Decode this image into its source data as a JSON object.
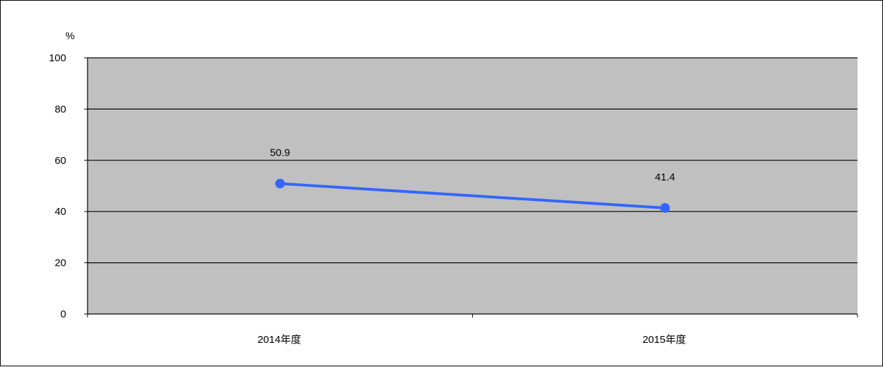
{
  "chart_data": {
    "type": "line",
    "y_unit": "%",
    "categories": [
      "2014年度",
      "2015年度"
    ],
    "series": [
      {
        "values": [
          50.9,
          41.4
        ],
        "color": "#3366ff"
      }
    ],
    "data_labels": [
      "50.9",
      "41.4"
    ],
    "ylim": [
      0,
      100
    ],
    "y_ticks": [
      0,
      20,
      40,
      60,
      80,
      100
    ],
    "y_tick_labels": [
      "0",
      "20",
      "40",
      "60",
      "80",
      "100"
    ],
    "grid": true,
    "legend": "none",
    "plot_background": "#c0c0c0"
  }
}
